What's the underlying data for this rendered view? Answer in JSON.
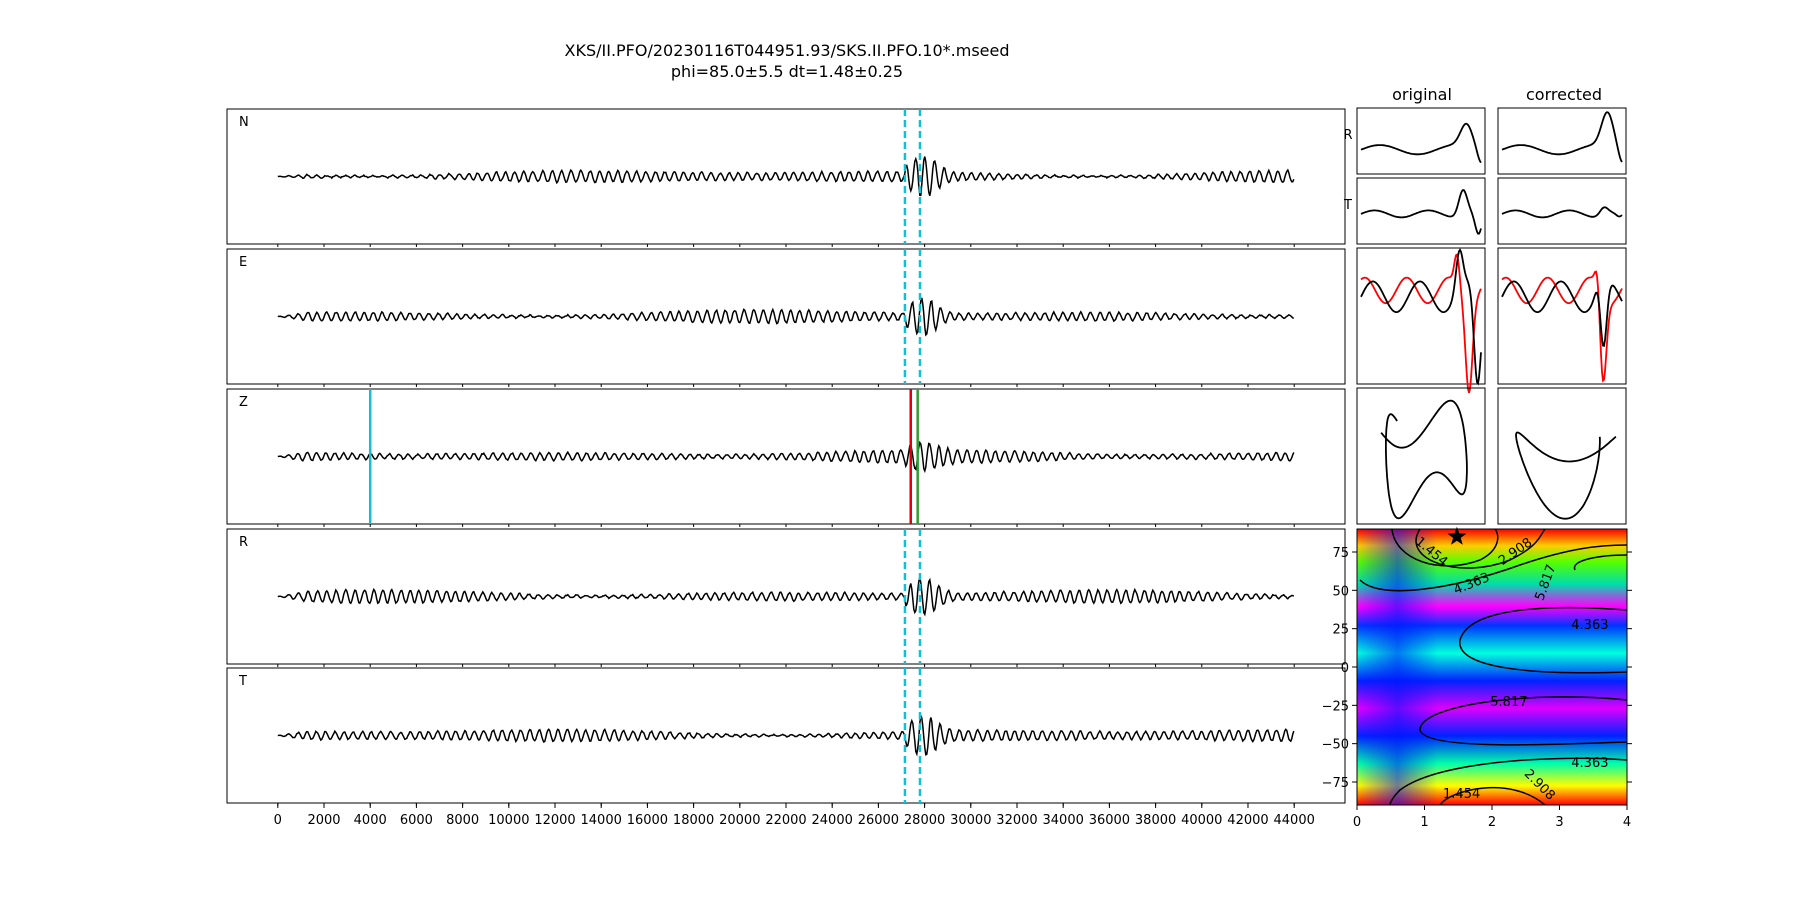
{
  "figure": {
    "title_line1": "XKS/II.PFO/20230116T044951.93/SKS.II.PFO.10*.mseed",
    "title_line2": "phi=85.0±5.5 dt=1.48±0.25"
  },
  "chart_data": [
    {
      "type": "line",
      "role": "waveform-panels",
      "panels": [
        {
          "label": "N",
          "markers": "window"
        },
        {
          "label": "E",
          "markers": "window"
        },
        {
          "label": "Z",
          "markers": "picks"
        },
        {
          "label": "R",
          "markers": "window"
        },
        {
          "label": "T",
          "markers": "window"
        }
      ],
      "x_ticks": [
        0,
        2000,
        4000,
        6000,
        8000,
        10000,
        12000,
        14000,
        16000,
        18000,
        20000,
        22000,
        24000,
        26000,
        28000,
        30000,
        32000,
        34000,
        36000,
        38000,
        40000,
        42000,
        44000
      ],
      "xlim": [
        -2200,
        46200
      ],
      "signal_x_range": [
        0,
        44000
      ],
      "window_lines": [
        27150,
        27800
      ],
      "window_color": "#17becf",
      "pick_lines": [
        {
          "x": 4000,
          "color": "#17becf"
        },
        {
          "x": 27400,
          "color": "#e00000"
        },
        {
          "x": 27700,
          "color": "#2ca02c"
        }
      ]
    },
    {
      "type": "line",
      "role": "particle-motion-panels",
      "column_titles": [
        "original",
        "corrected"
      ],
      "row_labels": [
        "R",
        "T",
        "",
        ""
      ],
      "series_colors": [
        "#000000",
        "#ff0000"
      ]
    },
    {
      "type": "heatmap",
      "role": "splitting-error-surface",
      "x_ticks": [
        "0",
        "1",
        "2",
        "3",
        "4"
      ],
      "y_ticks": [
        "75",
        "50",
        "25",
        "0",
        "−25",
        "−50",
        "−75"
      ],
      "y_values": [
        75,
        50,
        25,
        0,
        -25,
        -50,
        -75
      ],
      "xlim": [
        0,
        4
      ],
      "ylim": [
        -90,
        90
      ],
      "best": {
        "dt": 1.48,
        "phi": 85
      },
      "contour_labels": [
        {
          "text": "1.454",
          "x": 1.1,
          "y": 75,
          "rot": 40
        },
        {
          "text": "2.908",
          "x": 2.35,
          "y": 75,
          "rot": -35
        },
        {
          "text": "4.363",
          "x": 1.7,
          "y": 54,
          "rot": -22
        },
        {
          "text": "5.817",
          "x": 2.8,
          "y": 55,
          "rot": -70
        },
        {
          "text": "4.363",
          "x": 3.45,
          "y": 27,
          "rot": 0
        },
        {
          "text": "5.817",
          "x": 2.25,
          "y": -23,
          "rot": 0
        },
        {
          "text": "4.363",
          "x": 3.45,
          "y": -63,
          "rot": 0
        },
        {
          "text": "2.908",
          "x": 2.7,
          "y": -77,
          "rot": 45
        },
        {
          "text": "1.454",
          "x": 1.55,
          "y": -83,
          "rot": 0
        }
      ]
    }
  ]
}
